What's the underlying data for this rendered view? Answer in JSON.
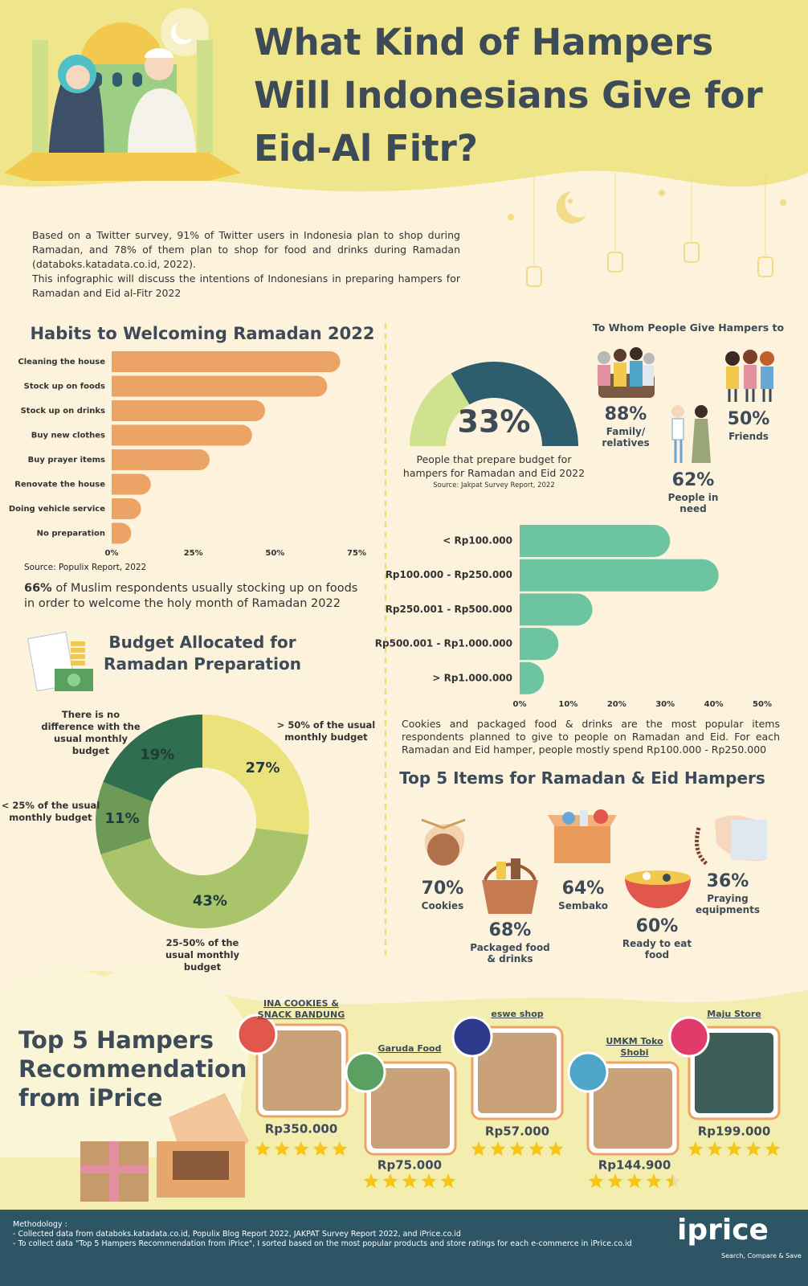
{
  "header": {
    "title": "What Kind of Hampers Will Indonesians Give for Eid-Al Fitr?"
  },
  "intro": [
    "Based on a Twitter survey, 91% of Twitter users in Indonesia plan to shop during Ramadan, and 78% of them plan to shop for food and drinks during Ramadan (databoks.katadata.co.id, 2022).",
    "This infographic will discuss the intentions of Indonesians in preparing hampers for Ramadan and Eid al-Fitr 2022"
  ],
  "chart_data": [
    {
      "type": "bar",
      "orientation": "horizontal",
      "title": "Habits to Welcoming Ramadan 2022",
      "categories": [
        "Cleaning the house",
        "Stock up on foods",
        "Stock up on drinks",
        "Buy new clothes",
        "Buy prayer items",
        "Renovate the house",
        "Doing vehicle service",
        "No preparation"
      ],
      "values": [
        70,
        66,
        47,
        43,
        30,
        12,
        9,
        6
      ],
      "color": "#eba466",
      "xlim": [
        0,
        75
      ],
      "xticks": [
        {
          "value": 0,
          "label": "0%"
        },
        {
          "value": 25,
          "label": "25%"
        },
        {
          "value": 50,
          "label": "50%"
        },
        {
          "value": 75,
          "label": "75%"
        }
      ],
      "grid": false,
      "source": "Source: Populix Report, 2022",
      "note_highlight": "66%",
      "note": "of Muslim respondents usually stocking up on foods in order to welcome the holy month of Ramadan 2022"
    },
    {
      "type": "donut",
      "title": "Budget Allocated for Ramadan Preparation",
      "categories": [
        "> 50% of the usual monthly budget",
        "25-50% of the usual monthly budget",
        "< 25% of the usual monthly budget",
        "There is no difference with the usual monthly budget"
      ],
      "values": [
        27,
        43,
        11,
        19
      ],
      "value_labels": [
        "27%",
        "43%",
        "11%",
        "19%"
      ],
      "colors": [
        "#ece27c",
        "#a9c46a",
        "#6d9a57",
        "#2f6e4f"
      ]
    },
    {
      "type": "gauge",
      "value": 33,
      "value_label": "33%",
      "range": [
        0,
        100
      ],
      "label": "People that prepare budget for hampers for Ramadan and Eid 2022",
      "source": "Source: Jakpat Survey Report, 2022",
      "colors": [
        "#cfe38e",
        "#2e5e6d"
      ]
    },
    {
      "type": "stats",
      "title": "To Whom People Give Hampers to",
      "categories": [
        "Family/ relatives",
        "Friends",
        "People in need"
      ],
      "values": [
        88,
        50,
        62
      ],
      "value_labels": [
        "88%",
        "50%",
        "62%"
      ]
    },
    {
      "type": "bar",
      "orientation": "horizontal",
      "categories": [
        "< Rp100.000",
        "Rp100.000 - Rp250.000",
        "Rp250.001 - Rp500.000",
        "Rp500.001 - Rp1.000.000",
        "> Rp1.000.000"
      ],
      "values": [
        31,
        41,
        15,
        8,
        5
      ],
      "color": "#6dc4a1",
      "xlim": [
        0,
        50
      ],
      "xticks": [
        {
          "value": 0,
          "label": "0%"
        },
        {
          "value": 10,
          "label": "10%"
        },
        {
          "value": 20,
          "label": "20%"
        },
        {
          "value": 30,
          "label": "30%"
        },
        {
          "value": 40,
          "label": "40%"
        },
        {
          "value": 50,
          "label": "50%"
        }
      ],
      "grid": false,
      "caption": "Cookies and packaged food & drinks are the most popular items respondents planned to give to people on Ramadan and Eid. For each Ramadan and Eid hamper, people mostly spend Rp100.000 - Rp250.000"
    },
    {
      "type": "stats",
      "title": "Top 5 Items for Ramadan & Eid Hampers",
      "categories": [
        "Cookies",
        "Packaged food & drinks",
        "Sembako",
        "Ready to eat food",
        "Praying equipments"
      ],
      "values": [
        70,
        68,
        64,
        60,
        36
      ],
      "value_labels": [
        "70%",
        "68%",
        "64%",
        "60%",
        "36%"
      ]
    }
  ],
  "hampers": {
    "title": "Top 5 Hampers Recommendation from iPrice",
    "items": [
      {
        "store": "INA COOKIES & SNACK BANDUNG",
        "price": "Rp350.000",
        "rating": 5
      },
      {
        "store": "Garuda Food",
        "price": "Rp75.000",
        "rating": 5
      },
      {
        "store": "eswe shop",
        "price": "Rp57.000",
        "rating": 5
      },
      {
        "store": "UMKM Toko Shobi",
        "price": "Rp144.900",
        "rating": 4.5
      },
      {
        "store": "Maju Store",
        "price": "Rp199.000",
        "rating": 5
      }
    ]
  },
  "footer": {
    "heading": "Methodology :",
    "lines": [
      "- Collected data from databoks.katadata.co.id, Populix Blog Report 2022, JAKPAT Survey Report 2022, and iPrice.co.id",
      "- To collect data \"Top 5 Hampers Recommendation from iPrice\", I sorted based on the most popular products and store ratings for each e-commerce in iPrice.co.id"
    ],
    "logo": "iprice",
    "tagline": "Search, Compare & Save"
  }
}
